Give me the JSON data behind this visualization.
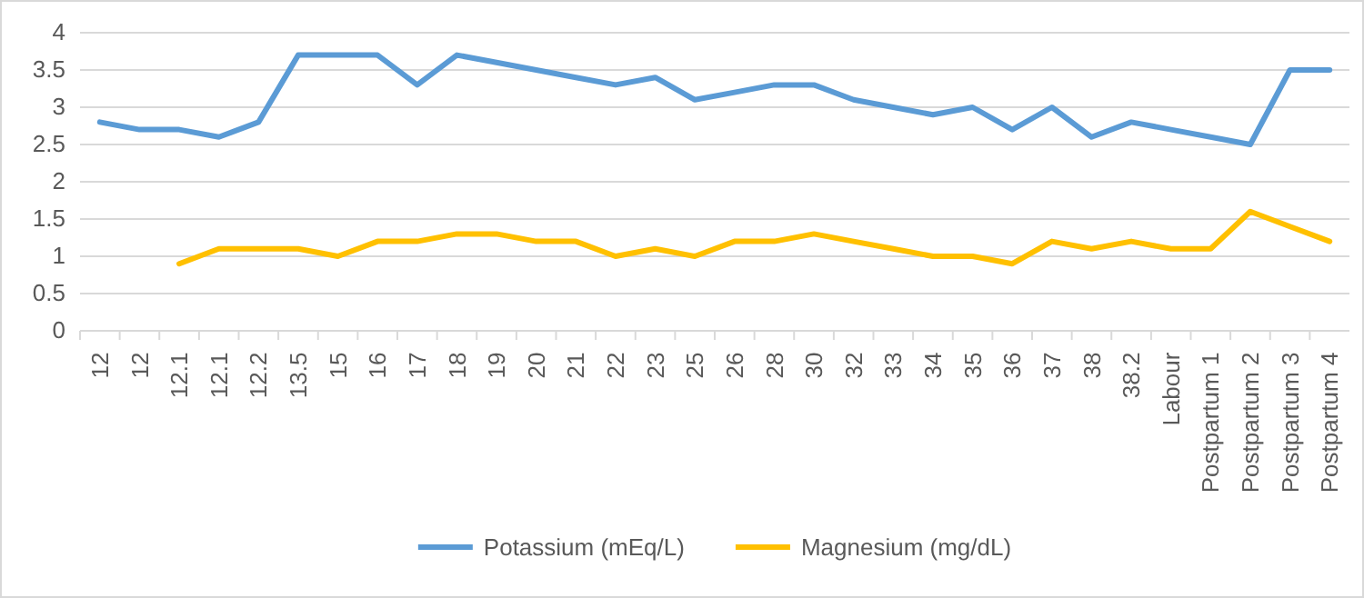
{
  "chart_data": {
    "type": "line",
    "categories": [
      "12",
      "12",
      "12.1",
      "12.1",
      "12.2",
      "13.5",
      "15",
      "16",
      "17",
      "18",
      "19",
      "20",
      "21",
      "22",
      "23",
      "25",
      "26",
      "28",
      "30",
      "32",
      "33",
      "34",
      "35",
      "36",
      "37",
      "38",
      "38.2",
      "Labour",
      "Postpartum 1",
      "Postpartum 2",
      "Postpartum 3",
      "Postpartum 4"
    ],
    "series": [
      {
        "name": "Potassium (mEq/L)",
        "color": "#5b9bd5",
        "values": [
          2.8,
          2.7,
          2.7,
          2.6,
          2.8,
          3.7,
          3.7,
          3.7,
          3.3,
          3.7,
          3.6,
          3.5,
          3.4,
          3.3,
          3.4,
          3.1,
          3.2,
          3.3,
          3.3,
          3.1,
          3.0,
          2.9,
          3.0,
          2.7,
          3.0,
          2.6,
          2.8,
          2.7,
          2.6,
          2.5,
          3.5,
          3.5
        ]
      },
      {
        "name": "Magnesium (mg/dL)",
        "color": "#ffc000",
        "values": [
          null,
          null,
          0.9,
          1.1,
          1.1,
          1.1,
          1.0,
          1.2,
          1.2,
          1.3,
          1.3,
          1.2,
          1.2,
          1.0,
          1.1,
          1.0,
          1.2,
          1.2,
          1.3,
          1.2,
          1.1,
          1.0,
          1.0,
          0.9,
          1.2,
          1.1,
          1.2,
          1.1,
          1.1,
          1.6,
          1.4,
          1.2
        ]
      }
    ],
    "ylim": [
      0,
      4
    ],
    "yticks": [
      0,
      0.5,
      1,
      1.5,
      2,
      2.5,
      3,
      3.5,
      4
    ],
    "grid": "y",
    "legend": "bottom",
    "marker": "none",
    "line_style": "solid"
  }
}
